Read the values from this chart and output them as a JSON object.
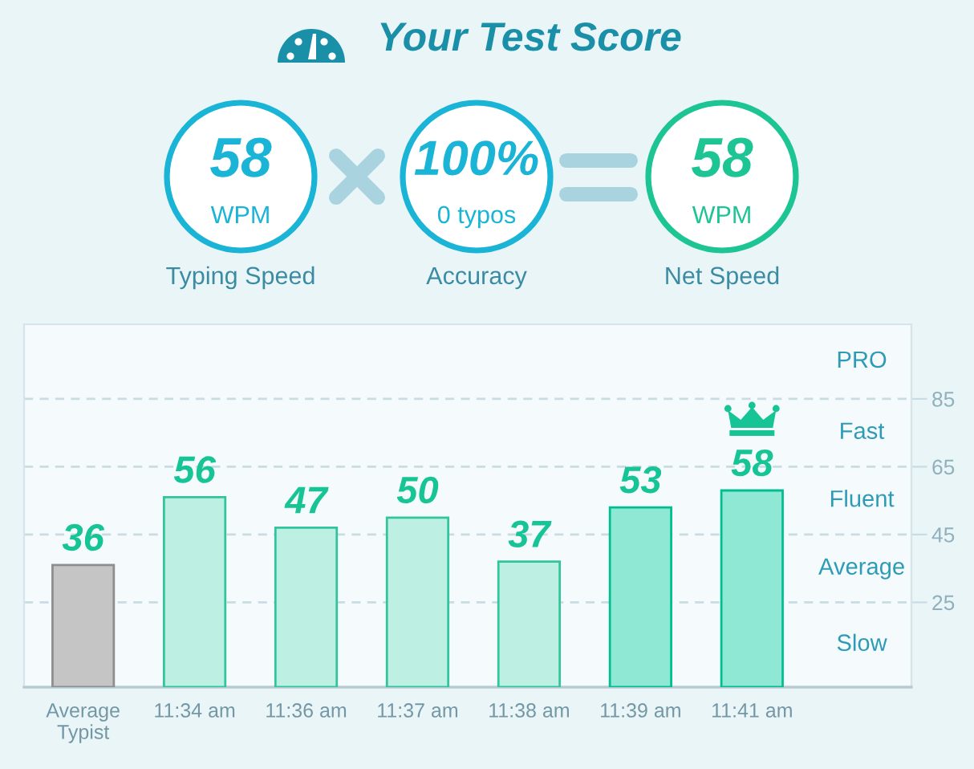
{
  "chart_data": [
    {
      "type": "other",
      "title": "Your Test Score",
      "annotations": [
        "58",
        "WPM",
        "Typing Speed",
        "100%",
        "0 typos",
        "Accuracy",
        "58",
        "WPM",
        "Net Speed"
      ],
      "colors": [
        "#19b4d6",
        "#19b4d6",
        "#1cc593"
      ]
    },
    {
      "type": "bar",
      "categories": [
        "Average Typist",
        "11:34 am",
        "11:36 am",
        "11:37 am",
        "11:38 am",
        "11:39 am",
        "11:41 am"
      ],
      "values": [
        36,
        56,
        47,
        50,
        37,
        53,
        58
      ],
      "colors": [
        "#c5c5c5",
        "#bdf0e2",
        "#bdf0e2",
        "#bdf0e2",
        "#bdf0e2",
        "#8fe8d3",
        "#8fe8d3"
      ],
      "ylim": [
        0,
        107
      ],
      "yticks": [
        25,
        45,
        65,
        85
      ],
      "grid": "y",
      "data_labels": true,
      "annotations": [
        "PRO",
        "Fast",
        "Fluent",
        "Average",
        "Slow"
      ]
    }
  ]
}
